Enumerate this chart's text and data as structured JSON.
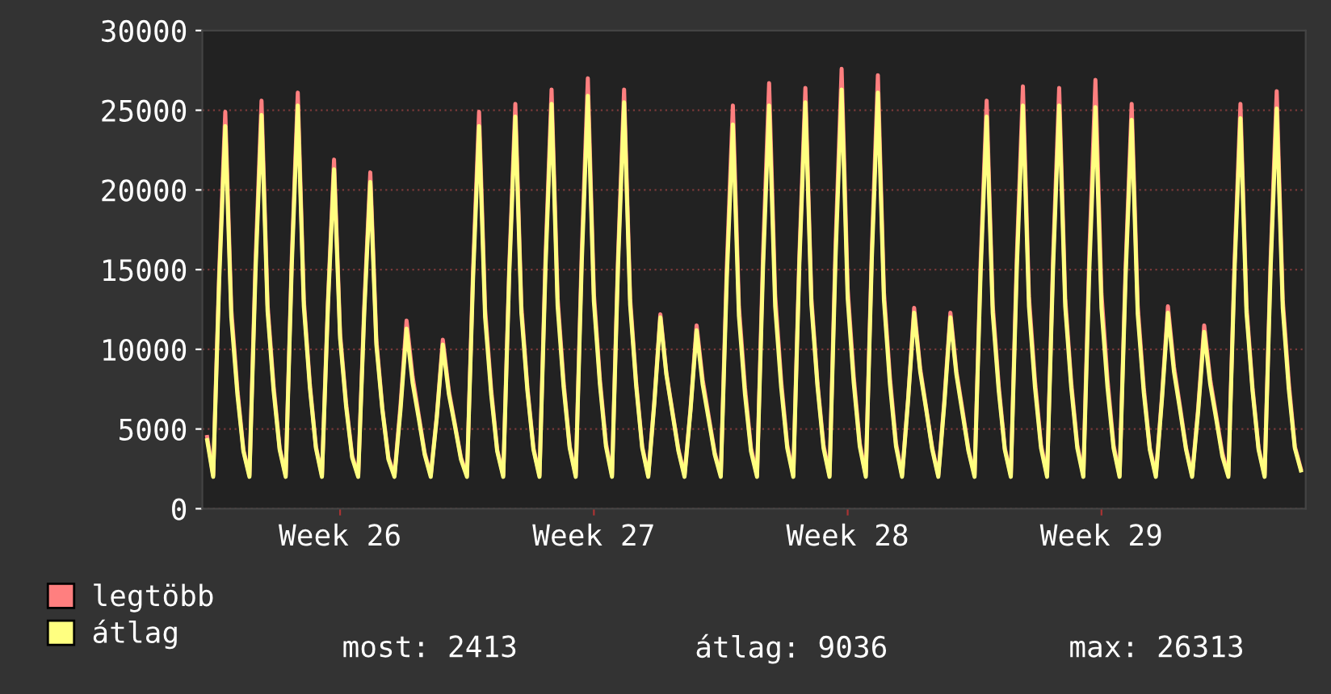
{
  "chart_data": {
    "type": "line",
    "categories": [
      null,
      null,
      null,
      null,
      null,
      null,
      null,
      null,
      null,
      null,
      null,
      null,
      null,
      null,
      null,
      null,
      null,
      null,
      null,
      null,
      null,
      null,
      "Week 26",
      null,
      null,
      null,
      null,
      null,
      null,
      null,
      null,
      null,
      null,
      null,
      null,
      null,
      null,
      null,
      null,
      null,
      null,
      null,
      null,
      null,
      null,
      null,
      null,
      null,
      null,
      null,
      null,
      null,
      null,
      null,
      null,
      null,
      null,
      null,
      null,
      null,
      null,
      null,
      null,
      null,
      "Week 27",
      null,
      null,
      null,
      null,
      null,
      null,
      null,
      null,
      null,
      null,
      null,
      null,
      null,
      null,
      null,
      null,
      null,
      null,
      null,
      null,
      null,
      null,
      null,
      null,
      null,
      null,
      null,
      null,
      null,
      null,
      null,
      null,
      null,
      null,
      null,
      null,
      null,
      null,
      null,
      null,
      null,
      "Week 28",
      null,
      null,
      null,
      null,
      null,
      null,
      null,
      null,
      null,
      null,
      null,
      null,
      null,
      null,
      null,
      null,
      null,
      null,
      null,
      null,
      null,
      null,
      null,
      null,
      null,
      null,
      null,
      null,
      null,
      null,
      null,
      null,
      null,
      null,
      null,
      null,
      null,
      null,
      null,
      null,
      null,
      "Week 29",
      null,
      null,
      null,
      null,
      null,
      null,
      null,
      null,
      null,
      null,
      null,
      null,
      null,
      null,
      null,
      null,
      null,
      null,
      null,
      null,
      null,
      null,
      null,
      null,
      null,
      null,
      null,
      null,
      null,
      null,
      null,
      null,
      null
    ],
    "series": [
      {
        "name": "legtöbb",
        "color": "#ff7f7f",
        "values": [
          4500,
          2100,
          14900,
          24900,
          12500,
          7500,
          3700,
          2100,
          15400,
          25600,
          12800,
          7700,
          3800,
          2100,
          15700,
          26100,
          13100,
          7800,
          3900,
          2100,
          13100,
          21900,
          11000,
          6600,
          3300,
          2100,
          12700,
          21100,
          10600,
          6300,
          3200,
          2100,
          6500,
          11800,
          8300,
          5900,
          3500,
          2100,
          5800,
          10600,
          7400,
          5300,
          3200,
          2100,
          14900,
          24900,
          12500,
          7500,
          3700,
          2100,
          15200,
          25400,
          12700,
          7600,
          3800,
          2100,
          15800,
          26300,
          13200,
          7900,
          3900,
          2100,
          16200,
          27000,
          13500,
          8100,
          4100,
          2100,
          15800,
          26300,
          13200,
          7900,
          3900,
          2100,
          6700,
          12200,
          8500,
          6100,
          3700,
          2100,
          6300,
          11500,
          8100,
          5800,
          3500,
          2100,
          15200,
          25300,
          12700,
          7600,
          3800,
          2100,
          16000,
          26700,
          13400,
          8000,
          4000,
          2100,
          15800,
          26400,
          13200,
          7900,
          4000,
          2100,
          16600,
          27600,
          13800,
          8300,
          4100,
          2100,
          16300,
          27200,
          13600,
          8200,
          4100,
          2100,
          6900,
          12600,
          8800,
          6300,
          3800,
          2100,
          6800,
          12300,
          8600,
          6200,
          3700,
          2100,
          15400,
          25600,
          12800,
          7700,
          3800,
          2100,
          15900,
          26500,
          13300,
          8000,
          4000,
          2100,
          15800,
          26400,
          13200,
          7900,
          4000,
          2100,
          16100,
          26900,
          13500,
          8100,
          4000,
          2100,
          15200,
          25400,
          12700,
          7600,
          3800,
          2100,
          7000,
          12700,
          8900,
          6400,
          3800,
          2100,
          6300,
          11500,
          8100,
          5800,
          3500,
          2100,
          15200,
          25400,
          12700,
          7600,
          3800,
          2100,
          15700,
          26200,
          13100,
          7900,
          3900,
          2500
        ]
      },
      {
        "name": "átlag",
        "color": "#ffff80",
        "values": [
          4300,
          2000,
          14400,
          24000,
          12000,
          7200,
          3600,
          2000,
          14800,
          24700,
          12400,
          7400,
          3700,
          2000,
          15200,
          25300,
          12700,
          7600,
          3800,
          2000,
          12800,
          21300,
          10700,
          6400,
          3200,
          2000,
          12300,
          20500,
          10300,
          6200,
          3100,
          2000,
          6200,
          11300,
          7900,
          5700,
          3400,
          2000,
          5700,
          10300,
          7200,
          5200,
          3100,
          2000,
          14400,
          24000,
          12000,
          7200,
          3600,
          2000,
          14800,
          24600,
          12300,
          7400,
          3700,
          2000,
          15200,
          25400,
          12700,
          7600,
          3800,
          2000,
          15500,
          25900,
          13000,
          7800,
          3900,
          2000,
          15300,
          25500,
          12800,
          7700,
          3800,
          2000,
          6600,
          12000,
          8400,
          6000,
          3600,
          2000,
          6200,
          11200,
          7800,
          5600,
          3400,
          2000,
          14500,
          24100,
          12100,
          7200,
          3600,
          2000,
          15200,
          25300,
          12700,
          7600,
          3800,
          2000,
          15300,
          25500,
          12800,
          7700,
          3800,
          2000,
          15800,
          26300,
          13200,
          7900,
          3900,
          2000,
          15700,
          26100,
          13100,
          7800,
          3900,
          2000,
          6800,
          12300,
          8600,
          6200,
          3700,
          2000,
          6600,
          12000,
          8400,
          6000,
          3600,
          2000,
          14800,
          24600,
          12300,
          7400,
          3700,
          2000,
          15200,
          25300,
          12700,
          7600,
          3800,
          2000,
          15200,
          25300,
          12700,
          7600,
          3800,
          2000,
          15100,
          25200,
          12600,
          7600,
          3800,
          2000,
          14600,
          24400,
          12200,
          7300,
          3700,
          2000,
          6800,
          12300,
          8600,
          6200,
          3700,
          2000,
          6100,
          11100,
          7800,
          5600,
          3300,
          2000,
          14700,
          24500,
          12300,
          7400,
          3700,
          2000,
          15100,
          25100,
          12600,
          7500,
          3800,
          2400
        ]
      }
    ],
    "ylim": [
      0,
      30000
    ],
    "yticks": [
      0,
      5000,
      10000,
      15000,
      20000,
      25000,
      30000
    ],
    "grid": "y",
    "legend": "bottom left",
    "marker": "none",
    "line_style": "solid",
    "annotations": [
      "most: 2413",
      "átlag: 9036",
      "max: 26313"
    ]
  }
}
